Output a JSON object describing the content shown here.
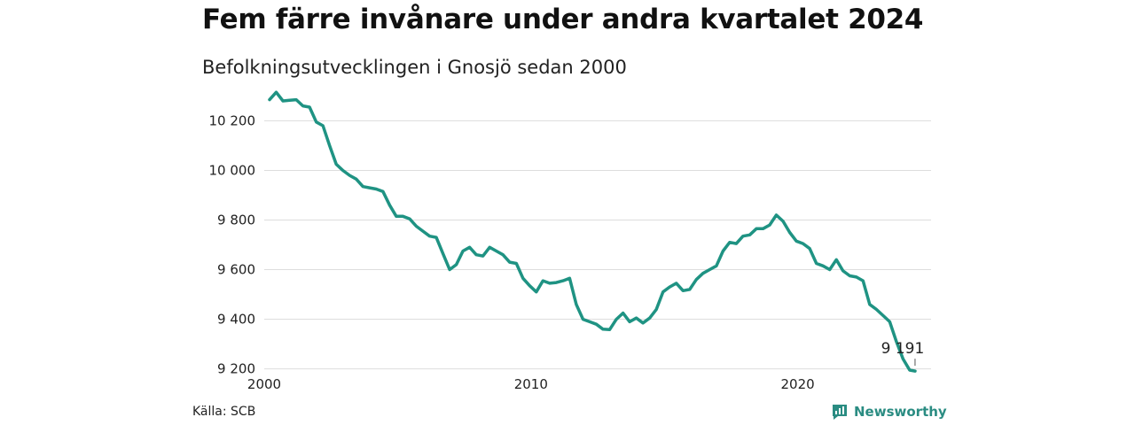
{
  "header": {
    "title": "Fem färre invånare under andra kvartalet 2024",
    "subtitle": "Befolkningsutvecklingen i Gnosjö sedan 2000"
  },
  "footer": {
    "source": "Källa: SCB",
    "brand": "Newsworthy",
    "brand_icon": "newsworthy-logo-icon"
  },
  "colors": {
    "line": "#1f9383",
    "grid": "#dddddd",
    "brand": "#2a8c82"
  },
  "chart_data": {
    "type": "line",
    "title": "Fem färre invånare under andra kvartalet 2024",
    "subtitle": "Befolkningsutvecklingen i Gnosjö sedan 2000",
    "xlabel": "",
    "ylabel": "",
    "xlim": [
      2000,
      2025
    ],
    "ylim": [
      9170,
      10330
    ],
    "xticks": [
      2000,
      2010,
      2020
    ],
    "xtick_labels": [
      "2000",
      "2010",
      "2020"
    ],
    "yticks": [
      9200,
      9400,
      9600,
      9800,
      10000,
      10200
    ],
    "ytick_labels": [
      "9 200",
      "9 400",
      "9 600",
      "9 800",
      "10 000",
      "10 200"
    ],
    "grid": "horizontal",
    "annotation": {
      "x": 2024.4,
      "y": 9191,
      "label": "9 191"
    },
    "series": [
      {
        "x": [
          2000.2,
          2000.45,
          2000.7,
          2000.95,
          2001.2,
          2001.45,
          2001.7,
          2001.95,
          2002.2,
          2002.45,
          2002.7,
          2002.95,
          2003.2,
          2003.45,
          2003.7,
          2003.95,
          2004.2,
          2004.45,
          2004.7,
          2004.95,
          2005.2,
          2005.45,
          2005.7,
          2005.95,
          2006.2,
          2006.45,
          2006.7,
          2006.95,
          2007.2,
          2007.45,
          2007.7,
          2007.95,
          2008.2,
          2008.45,
          2008.7,
          2008.95,
          2009.2,
          2009.45,
          2009.7,
          2009.95,
          2010.2,
          2010.45,
          2010.7,
          2010.95,
          2011.2,
          2011.45,
          2011.7,
          2011.95,
          2012.2,
          2012.45,
          2012.7,
          2012.95,
          2013.2,
          2013.45,
          2013.7,
          2013.95,
          2014.2,
          2014.45,
          2014.7,
          2014.95,
          2015.2,
          2015.45,
          2015.7,
          2015.95,
          2016.2,
          2016.45,
          2016.7,
          2016.95,
          2017.2,
          2017.45,
          2017.7,
          2017.95,
          2018.2,
          2018.45,
          2018.7,
          2018.95,
          2019.2,
          2019.45,
          2019.7,
          2019.95,
          2020.2,
          2020.45,
          2020.7,
          2020.95,
          2021.2,
          2021.45,
          2021.7,
          2021.95,
          2022.2,
          2022.45,
          2022.7,
          2022.95,
          2023.2,
          2023.45,
          2023.7,
          2023.95,
          2024.2,
          2024.4
        ],
        "y": [
          10285,
          10315,
          10280,
          10283,
          10285,
          10260,
          10255,
          10195,
          10180,
          10100,
          10025,
          10000,
          9980,
          9965,
          9935,
          9930,
          9925,
          9915,
          9860,
          9815,
          9815,
          9805,
          9775,
          9755,
          9735,
          9730,
          9665,
          9600,
          9620,
          9675,
          9690,
          9660,
          9655,
          9690,
          9675,
          9660,
          9630,
          9625,
          9565,
          9535,
          9510,
          9555,
          9545,
          9548,
          9555,
          9565,
          9460,
          9400,
          9390,
          9380,
          9360,
          9358,
          9400,
          9425,
          9390,
          9405,
          9385,
          9405,
          9440,
          9510,
          9530,
          9545,
          9515,
          9520,
          9560,
          9585,
          9600,
          9615,
          9675,
          9710,
          9705,
          9735,
          9740,
          9765,
          9765,
          9780,
          9820,
          9795,
          9750,
          9715,
          9705,
          9685,
          9625,
          9615,
          9600,
          9640,
          9595,
          9575,
          9570,
          9555,
          9460,
          9440,
          9415,
          9390,
          9310,
          9240,
          9195,
          9191
        ]
      }
    ]
  }
}
